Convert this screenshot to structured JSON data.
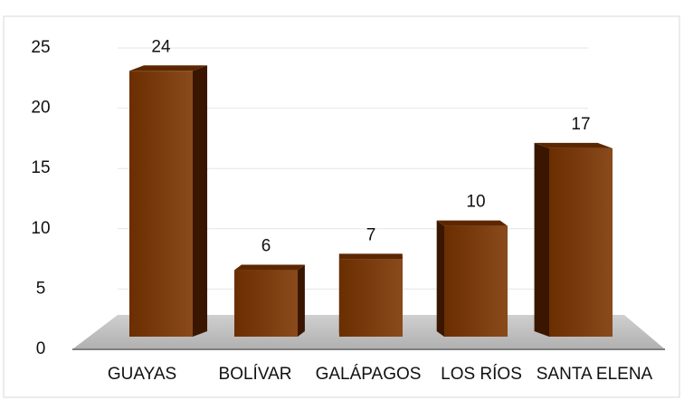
{
  "chart_data": {
    "type": "bar3d",
    "categories": [
      "GUAYAS",
      "BOLÍVAR",
      "GALÁPAGOS",
      "LOS RÍOS",
      "SANTA ELENA"
    ],
    "values": [
      24,
      6,
      7,
      10,
      17
    ],
    "color": "#7a3a08",
    "ylim": [
      0,
      25
    ],
    "yticks": [
      0,
      5,
      10,
      15,
      20,
      25
    ],
    "grid": true
  }
}
